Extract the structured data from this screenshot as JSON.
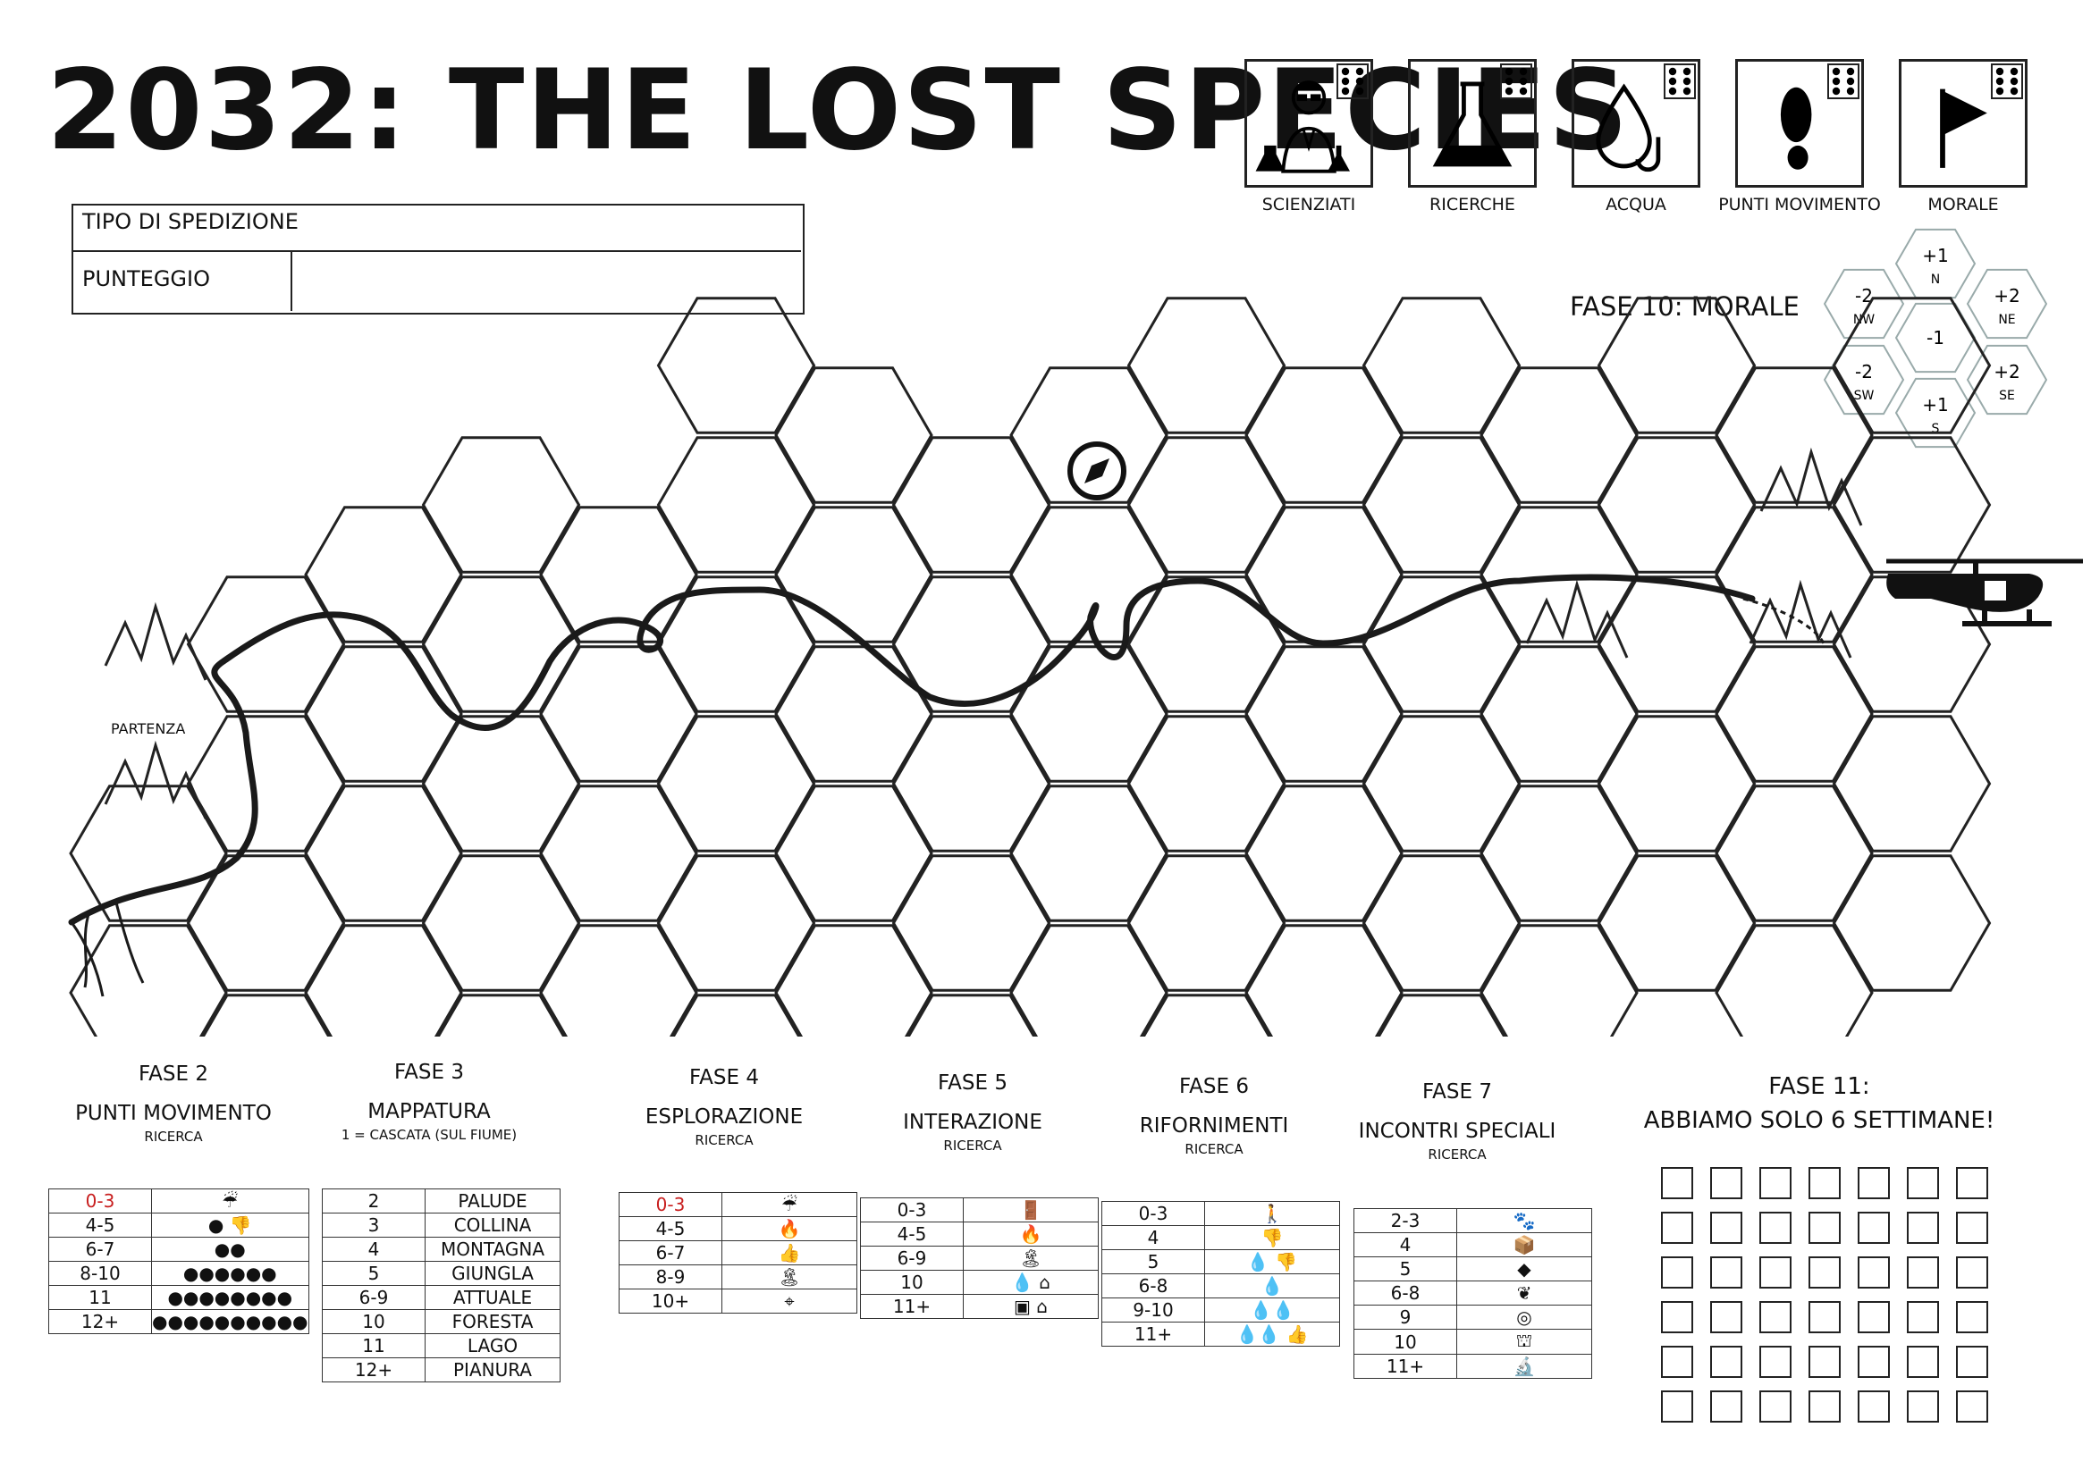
{
  "title": "2032: THE LOST SPECIES",
  "expedition": {
    "type_label": "TIPO DI SPEDIZIONE",
    "score_label": "PUNTEGGIO"
  },
  "resources": [
    {
      "label": "SCIENZIATI",
      "icon": "scientist-icon"
    },
    {
      "label": "RICERCHE",
      "icon": "flask-icon"
    },
    {
      "label": "ACQUA",
      "icon": "water-drop-icon"
    },
    {
      "label": "PUNTI MOVIMENTO",
      "icon": "footprint-icon"
    },
    {
      "label": "MORALE",
      "icon": "flag-icon"
    }
  ],
  "map": {
    "start_label": "PARTENZA",
    "compass_icon": "compass-icon",
    "helicopter_icon": "helicopter-icon"
  },
  "morale": {
    "title": "FASE 10: MORALE",
    "hexes": [
      {
        "value": "+1",
        "dir": "N"
      },
      {
        "value": "-2",
        "dir": "NW"
      },
      {
        "value": "+2",
        "dir": "NE"
      },
      {
        "value": "-1",
        "dir": ""
      },
      {
        "value": "-2",
        "dir": "SW"
      },
      {
        "value": "+2",
        "dir": "SE"
      },
      {
        "value": "+1",
        "dir": "S"
      }
    ]
  },
  "phases": {
    "p2": {
      "phase": "FASE 2",
      "name": "PUNTI MOVIMENTO",
      "sub": "RICERCA",
      "rows": [
        {
          "range": "0-3",
          "result": "rain-icon",
          "red": true
        },
        {
          "range": "4-5",
          "result": "1 footprint + thumbs-down-icon"
        },
        {
          "range": "6-7",
          "result": "2 footprints"
        },
        {
          "range": "8-10",
          "result": "6 footprints"
        },
        {
          "range": "11",
          "result": "8 footprints"
        },
        {
          "range": "12+",
          "result": "10 footprints"
        }
      ]
    },
    "p3": {
      "phase": "FASE 3",
      "name": "MAPPATURA",
      "sub": "1 = CASCATA (SUL FIUME)",
      "rows": [
        {
          "range": "2",
          "result": "PALUDE"
        },
        {
          "range": "3",
          "result": "COLLINA"
        },
        {
          "range": "4",
          "result": "MONTAGNA"
        },
        {
          "range": "5",
          "result": "GIUNGLA"
        },
        {
          "range": "6-9",
          "result": "ATTUALE"
        },
        {
          "range": "10",
          "result": "FORESTA"
        },
        {
          "range": "11",
          "result": "LAGO"
        },
        {
          "range": "12+",
          "result": "PIANURA"
        }
      ]
    },
    "p4": {
      "phase": "FASE 4",
      "name": "ESPLORAZIONE",
      "sub": "RICERCA",
      "rows": [
        {
          "range": "0-3",
          "result": "rain-icon",
          "red": true
        },
        {
          "range": "4-5",
          "result": "campfire-icon"
        },
        {
          "range": "6-7",
          "result": "thumbs-up-icon"
        },
        {
          "range": "8-9",
          "result": "island-icon"
        },
        {
          "range": "10+",
          "result": "compass-icon"
        }
      ]
    },
    "p5": {
      "phase": "FASE 5",
      "name": "INTERAZIONE",
      "sub": "RICERCA",
      "rows": [
        {
          "range": "0-3",
          "result": "exit-door-icon"
        },
        {
          "range": "4-5",
          "result": "campfire-icon"
        },
        {
          "range": "6-9",
          "result": "island-icon"
        },
        {
          "range": "10",
          "result": "water-drop-icon + hut-icon"
        },
        {
          "range": "11+",
          "result": "treasure-chest-icon + hut-icon"
        }
      ]
    },
    "p6": {
      "phase": "FASE 6",
      "name": "RIFORNIMENTI",
      "sub": "RICERCA",
      "rows": [
        {
          "range": "0-3",
          "result": "walking-person-icon"
        },
        {
          "range": "4",
          "result": "thumbs-down-icon"
        },
        {
          "range": "5",
          "result": "water-drop-icon + thumbs-down-icon"
        },
        {
          "range": "6-8",
          "result": "water-drop-icon"
        },
        {
          "range": "9-10",
          "result": "2 water-drop-icon"
        },
        {
          "range": "11+",
          "result": "2 water-drop-icon + thumbs-up-icon"
        }
      ]
    },
    "p7": {
      "phase": "FASE 7",
      "name": "INCONTRI SPECIALI",
      "sub": "RICERCA",
      "rows": [
        {
          "range": "2-3",
          "result": "animal-icon"
        },
        {
          "range": "4",
          "result": "box-icon"
        },
        {
          "range": "5",
          "result": "hazard-icon"
        },
        {
          "range": "6-8",
          "result": "plant-icon"
        },
        {
          "range": "9",
          "result": "crystal-ball-icon"
        },
        {
          "range": "10",
          "result": "ruins-icon"
        },
        {
          "range": "11+",
          "result": "microscope-icon"
        }
      ]
    }
  },
  "fase11": {
    "line1": "FASE 11:",
    "line2": "ABBIAMO SOLO 6 SETTIMANE!",
    "weeks": 6,
    "days_per_week": 7
  }
}
